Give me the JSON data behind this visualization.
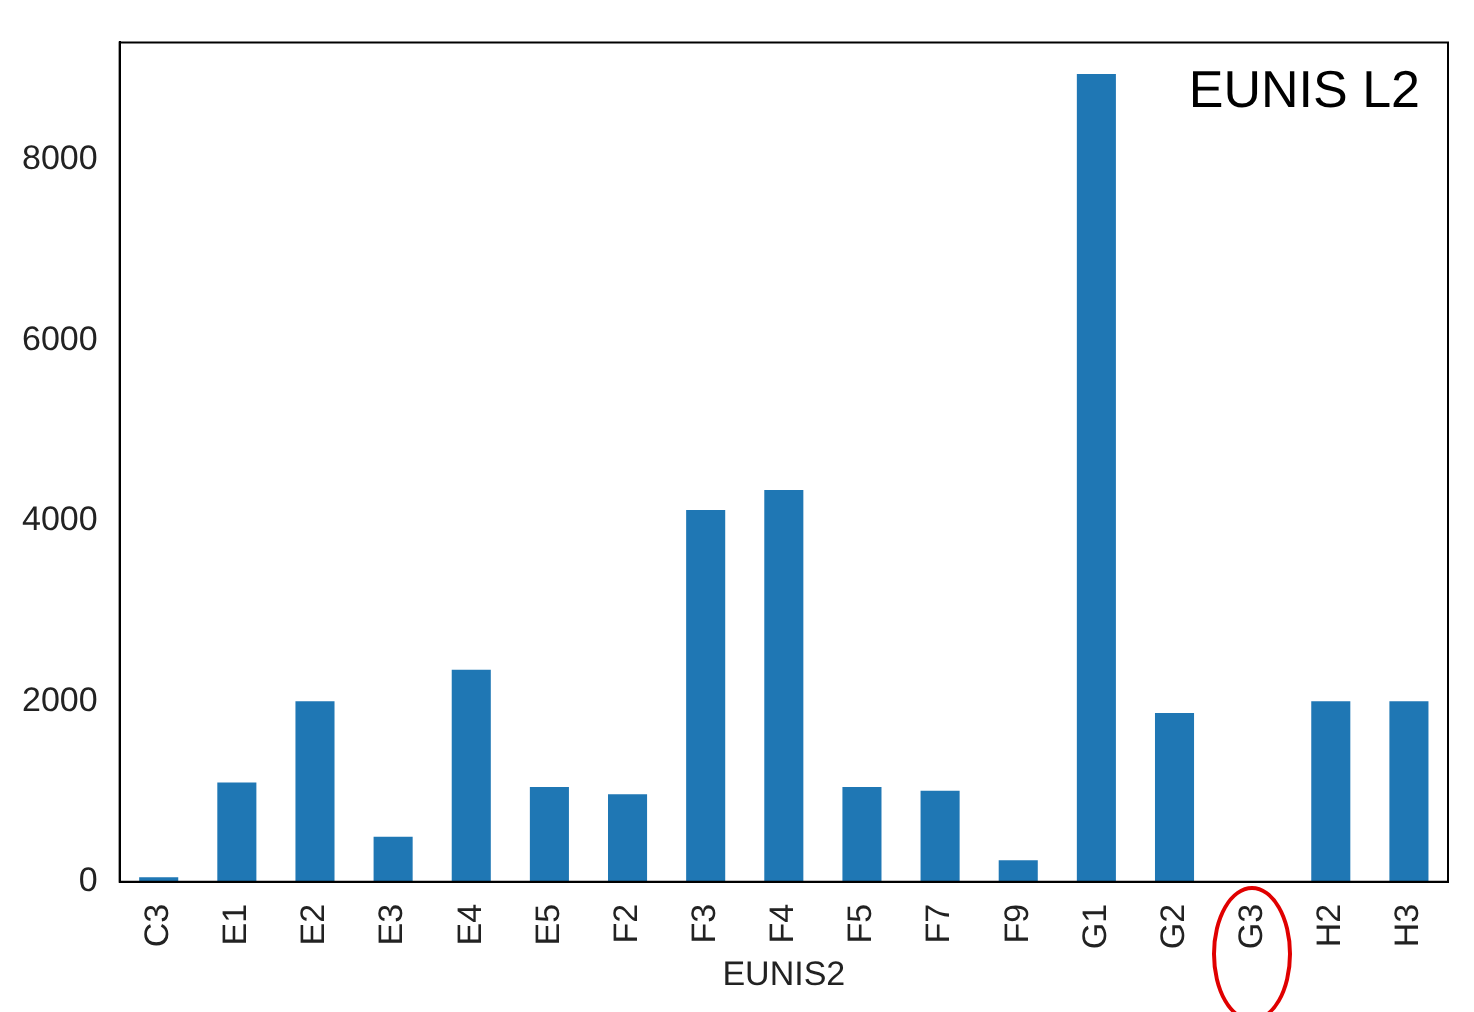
{
  "chart_data": {
    "type": "bar",
    "xlabel": "EUNIS2",
    "categories": [
      "C3",
      "E1",
      "E2",
      "E3",
      "E4",
      "E5",
      "F2",
      "F3",
      "F4",
      "F5",
      "F7",
      "F9",
      "G1",
      "G2",
      "G3",
      "H2",
      "H3"
    ],
    "values": [
      50,
      1100,
      2000,
      500,
      2350,
      1050,
      970,
      4120,
      4340,
      1050,
      1010,
      240,
      8950,
      1870,
      null,
      2000,
      2000
    ],
    "color": "#1f77b4",
    "ylim": [
      0,
      9300
    ],
    "yticks": [
      0,
      2000,
      4000,
      6000,
      8000
    ],
    "grid": false,
    "annotations": [
      "EUNIS L2"
    ]
  }
}
